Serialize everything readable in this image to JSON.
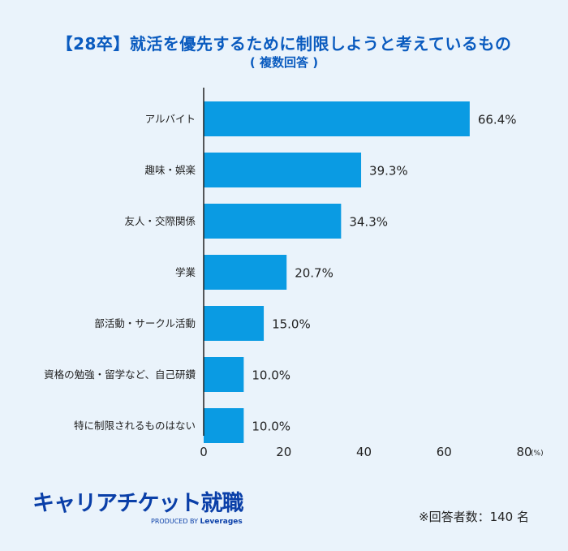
{
  "title": "【28卒】就活を優先するために制限しようと考えているもの",
  "subtitle": "( 複数回答 )",
  "chart_data": {
    "type": "bar",
    "orientation": "horizontal",
    "categories": [
      "アルバイト",
      "趣味・娯楽",
      "友人・交際関係",
      "学業",
      "部活動・サークル活動",
      "資格の勉強・留学など、自己研鑽",
      "特に制限されるものはない"
    ],
    "values": [
      66.4,
      39.3,
      34.3,
      20.7,
      15.0,
      10.0,
      10.0
    ],
    "value_labels": [
      "66.4%",
      "39.3%",
      "34.3%",
      "20.7%",
      "15.0%",
      "10.0%",
      "10.0%"
    ],
    "xticks": [
      0,
      20,
      40,
      60,
      80
    ],
    "xlim": [
      0,
      80
    ],
    "x_unit": "(%)",
    "bar_color": "#0a9be3",
    "grid": false
  },
  "logo": {
    "name": "キャリアチケット就職",
    "produced_by": "PRODUCED BY",
    "brand": "Leverages"
  },
  "note": "※回答者数：140 名",
  "colors": {
    "background": "#eaf3fb",
    "title": "#0a5bbf",
    "logo": "#0a3fa8"
  }
}
